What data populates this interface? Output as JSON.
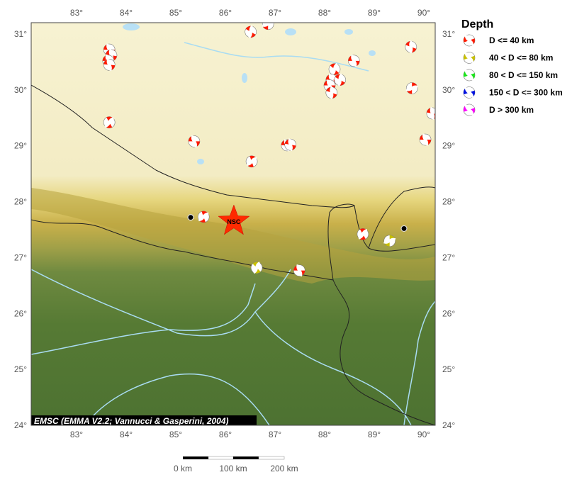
{
  "map": {
    "lon_ticks": [
      83,
      84,
      85,
      86,
      87,
      88,
      89,
      90
    ],
    "lat_ticks": [
      24,
      25,
      26,
      27,
      28,
      29,
      30,
      31
    ],
    "lon_range": [
      82.09,
      90.23
    ],
    "lat_range": [
      24.0,
      31.2
    ],
    "degree_symbol": "°",
    "credit": "EMSC (EMMA V2.2; Vannucci & Gasperini, 2004)",
    "epicenter": {
      "label": "NSC",
      "lon": 86.17,
      "lat": 27.65,
      "color": "#ff2a00"
    },
    "stations": [
      {
        "lon": 85.3,
        "lat": 27.72
      },
      {
        "lon": 89.6,
        "lat": 27.52
      }
    ],
    "events": [
      {
        "lon": 86.51,
        "lat": 31.04,
        "depth_class": 0,
        "rot": 30
      },
      {
        "lon": 86.86,
        "lat": 31.18,
        "depth_class": 0,
        "rot": 90
      },
      {
        "lon": 83.66,
        "lat": 30.72,
        "depth_class": 0,
        "rot": 0
      },
      {
        "lon": 83.7,
        "lat": 30.62,
        "depth_class": 0,
        "rot": 10
      },
      {
        "lon": 83.64,
        "lat": 30.52,
        "depth_class": 0,
        "rot": 0
      },
      {
        "lon": 83.66,
        "lat": 30.45,
        "depth_class": 0,
        "rot": 5
      },
      {
        "lon": 88.59,
        "lat": 30.52,
        "depth_class": 0,
        "rot": 0
      },
      {
        "lon": 89.74,
        "lat": 30.77,
        "depth_class": 0,
        "rot": 20
      },
      {
        "lon": 88.2,
        "lat": 30.37,
        "depth_class": 0,
        "rot": 40
      },
      {
        "lon": 88.14,
        "lat": 30.18,
        "depth_class": 0,
        "rot": 0
      },
      {
        "lon": 88.31,
        "lat": 30.18,
        "depth_class": 0,
        "rot": 30
      },
      {
        "lon": 88.1,
        "lat": 30.08,
        "depth_class": 0,
        "rot": 0
      },
      {
        "lon": 88.14,
        "lat": 29.95,
        "depth_class": 0,
        "rot": 20
      },
      {
        "lon": 89.76,
        "lat": 30.03,
        "depth_class": 0,
        "rot": 90
      },
      {
        "lon": 90.17,
        "lat": 29.58,
        "depth_class": 0,
        "rot": 10
      },
      {
        "lon": 83.66,
        "lat": 29.42,
        "depth_class": 0,
        "rot": 60
      },
      {
        "lon": 85.37,
        "lat": 29.08,
        "depth_class": 0,
        "rot": 0
      },
      {
        "lon": 87.24,
        "lat": 29.01,
        "depth_class": 0,
        "rot": 0
      },
      {
        "lon": 87.31,
        "lat": 29.02,
        "depth_class": 0,
        "rot": 10
      },
      {
        "lon": 86.53,
        "lat": 28.72,
        "depth_class": 0,
        "rot": 70
      },
      {
        "lon": 90.03,
        "lat": 29.11,
        "depth_class": 0,
        "rot": 0
      },
      {
        "lon": 85.56,
        "lat": 27.73,
        "depth_class": 0,
        "rot": 70
      },
      {
        "lon": 88.77,
        "lat": 27.42,
        "depth_class": 0,
        "rot": 60
      },
      {
        "lon": 89.31,
        "lat": 27.3,
        "depth_class": 1,
        "rot": 90
      },
      {
        "lon": 86.63,
        "lat": 26.82,
        "depth_class": 1,
        "rot": 45
      },
      {
        "lon": 87.49,
        "lat": 26.77,
        "depth_class": 0,
        "rot": 0
      }
    ]
  },
  "legend": {
    "title": "Depth",
    "items": [
      {
        "label": "D <= 40 km",
        "color": "#ff1a00"
      },
      {
        "label": "40 < D <= 80 km",
        "color": "#c8c000"
      },
      {
        "label": "80 < D <= 150 km",
        "color": "#19e619"
      },
      {
        "label": "150 < D <= 300 km",
        "color": "#0010e0"
      },
      {
        "label": "D > 300 km",
        "color": "#ff00ff"
      }
    ]
  },
  "scale_bar": {
    "labels": [
      "0 km",
      "100 km",
      "200 km"
    ]
  }
}
